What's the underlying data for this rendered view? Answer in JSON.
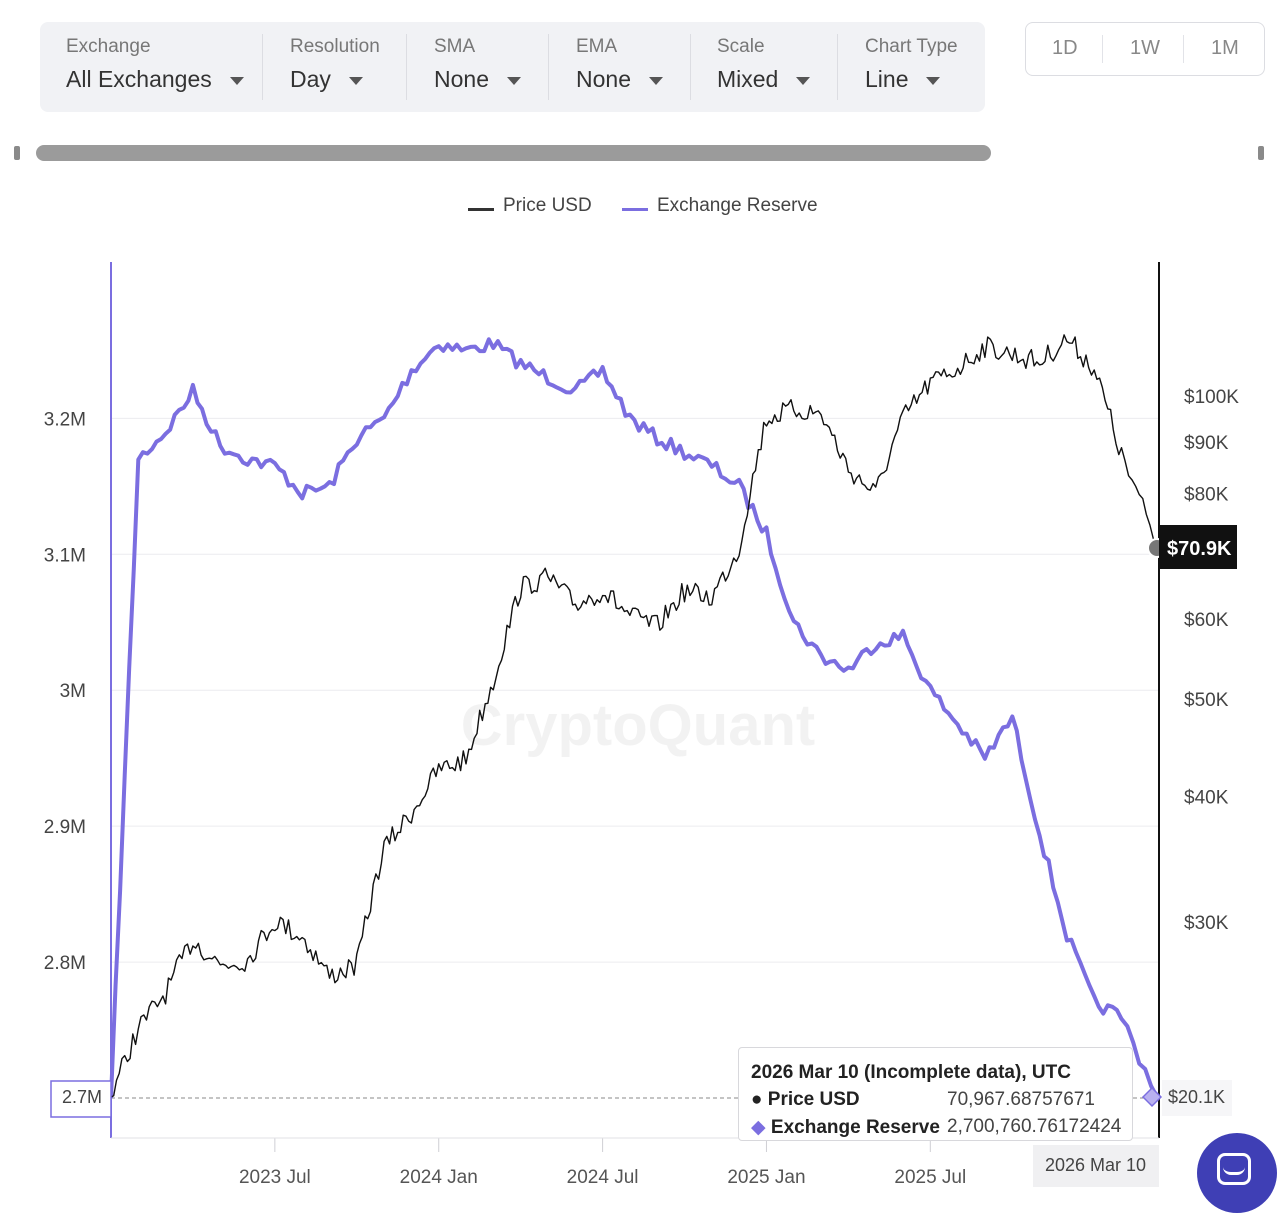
{
  "toolbar": {
    "filters": [
      {
        "label": "Exchange",
        "value": "All Exchanges"
      },
      {
        "label": "Resolution",
        "value": "Day"
      },
      {
        "label": "SMA",
        "value": "None"
      },
      {
        "label": "EMA",
        "value": "None"
      },
      {
        "label": "Scale",
        "value": "Mixed"
      },
      {
        "label": "Chart Type",
        "value": "Line"
      }
    ],
    "periods": [
      "1D",
      "1W",
      "1M"
    ]
  },
  "watermark": "CryptoQuant",
  "colors": {
    "price": "#111111",
    "reserve": "#7b6ee0",
    "grid": "#ececef"
  },
  "chart_data": {
    "type": "line",
    "legend": {
      "position": "top-center",
      "entries": [
        "Price USD",
        "Exchange Reserve"
      ]
    },
    "grid": true,
    "x_ticks": [
      "2023 Jul",
      "2024 Jan",
      "2024 Jul",
      "2025 Jan",
      "2025 Jul"
    ],
    "x_range": [
      "2023 Jan",
      "2026 Mar 10"
    ],
    "y_left": {
      "label": "",
      "ticks": [
        "3.2M",
        "3.1M",
        "3M",
        "2.9M",
        "2.8M"
      ],
      "range": [
        2700000,
        3290000
      ],
      "marker": "2.7M"
    },
    "y_right": {
      "label": "",
      "scale": "log",
      "ticks": [
        "$100K",
        "$90K",
        "$80K",
        "$60K",
        "$50K",
        "$40K",
        "$30K"
      ],
      "range": [
        20100,
        125000
      ],
      "marker_price": "$70.9K",
      "marker_min": "$20.1K"
    },
    "series": [
      {
        "name": "Price USD",
        "axis": "right",
        "x": [
          "2023 Jan",
          "2023 Feb",
          "2023 Mar",
          "2023 Apr",
          "2023 May",
          "2023 Jun",
          "2023 Jul",
          "2023 Aug",
          "2023 Sep",
          "2023 Oct",
          "2023 Nov",
          "2023 Dec",
          "2024 Jan",
          "2024 Feb",
          "2024 Mar",
          "2024 Apr",
          "2024 May",
          "2024 Jun",
          "2024 Jul",
          "2024 Aug",
          "2024 Sep",
          "2024 Oct",
          "2024 Nov",
          "2024 Dec",
          "2025 Jan",
          "2025 Feb",
          "2025 Mar",
          "2025 Apr",
          "2025 May",
          "2025 Jun",
          "2025 Jul",
          "2025 Aug",
          "2025 Sep",
          "2025 Oct",
          "2025 Nov",
          "2025 Dec",
          "2026 Jan",
          "2026 Feb",
          "2026 Mar 10"
        ],
        "values": [
          20100,
          23500,
          25500,
          28800,
          27200,
          27500,
          30100,
          29000,
          26500,
          27200,
          35500,
          38500,
          42500,
          43500,
          52000,
          64500,
          66000,
          62000,
          64000,
          60500,
          59000,
          64000,
          63000,
          70500,
          95000,
          97000,
          96000,
          84500,
          80000,
          95000,
          103000,
          106500,
          112000,
          110000,
          108000,
          114000,
          106500,
          87000,
          70967.69
        ]
      },
      {
        "name": "Exchange Reserve",
        "axis": "left",
        "x": [
          "2023 Jan",
          "2023 Feb",
          "2023 Mar",
          "2023 Apr",
          "2023 May",
          "2023 Jun",
          "2023 Jul",
          "2023 Aug",
          "2023 Sep",
          "2023 Oct",
          "2023 Nov",
          "2023 Dec",
          "2024 Jan",
          "2024 Feb",
          "2024 Mar",
          "2024 Apr",
          "2024 May",
          "2024 Jun",
          "2024 Jul",
          "2024 Aug",
          "2024 Sep",
          "2024 Oct",
          "2024 Nov",
          "2024 Dec",
          "2025 Jan",
          "2025 Feb",
          "2025 Mar",
          "2025 Apr",
          "2025 May",
          "2025 Jun",
          "2025 Jul",
          "2025 Aug",
          "2025 Sep",
          "2025 Oct",
          "2025 Nov",
          "2025 Dec",
          "2026 Jan",
          "2026 Feb",
          "2026 Mar 10"
        ],
        "values": [
          2700000,
          3170000,
          3190000,
          3220000,
          3180000,
          3170000,
          3165000,
          3145000,
          3150000,
          3185000,
          3200000,
          3235000,
          3255000,
          3250000,
          3255000,
          3240000,
          3230000,
          3220000,
          3235000,
          3200000,
          3185000,
          3175000,
          3165000,
          3150000,
          3115000,
          3050000,
          3025000,
          3015000,
          3035000,
          3040000,
          3000000,
          2975000,
          2950000,
          2980000,
          2895000,
          2820000,
          2770000,
          2760000,
          2700760.76
        ]
      }
    ],
    "tooltip": {
      "date": "2026 Mar 10 (Incomplete data), UTC",
      "price_label": "Price USD",
      "price_value": "70,967.68757671",
      "reserve_label": "Exchange Reserve",
      "reserve_value": "2,700,760.76172424",
      "x_label": "2026 Mar 10"
    }
  }
}
